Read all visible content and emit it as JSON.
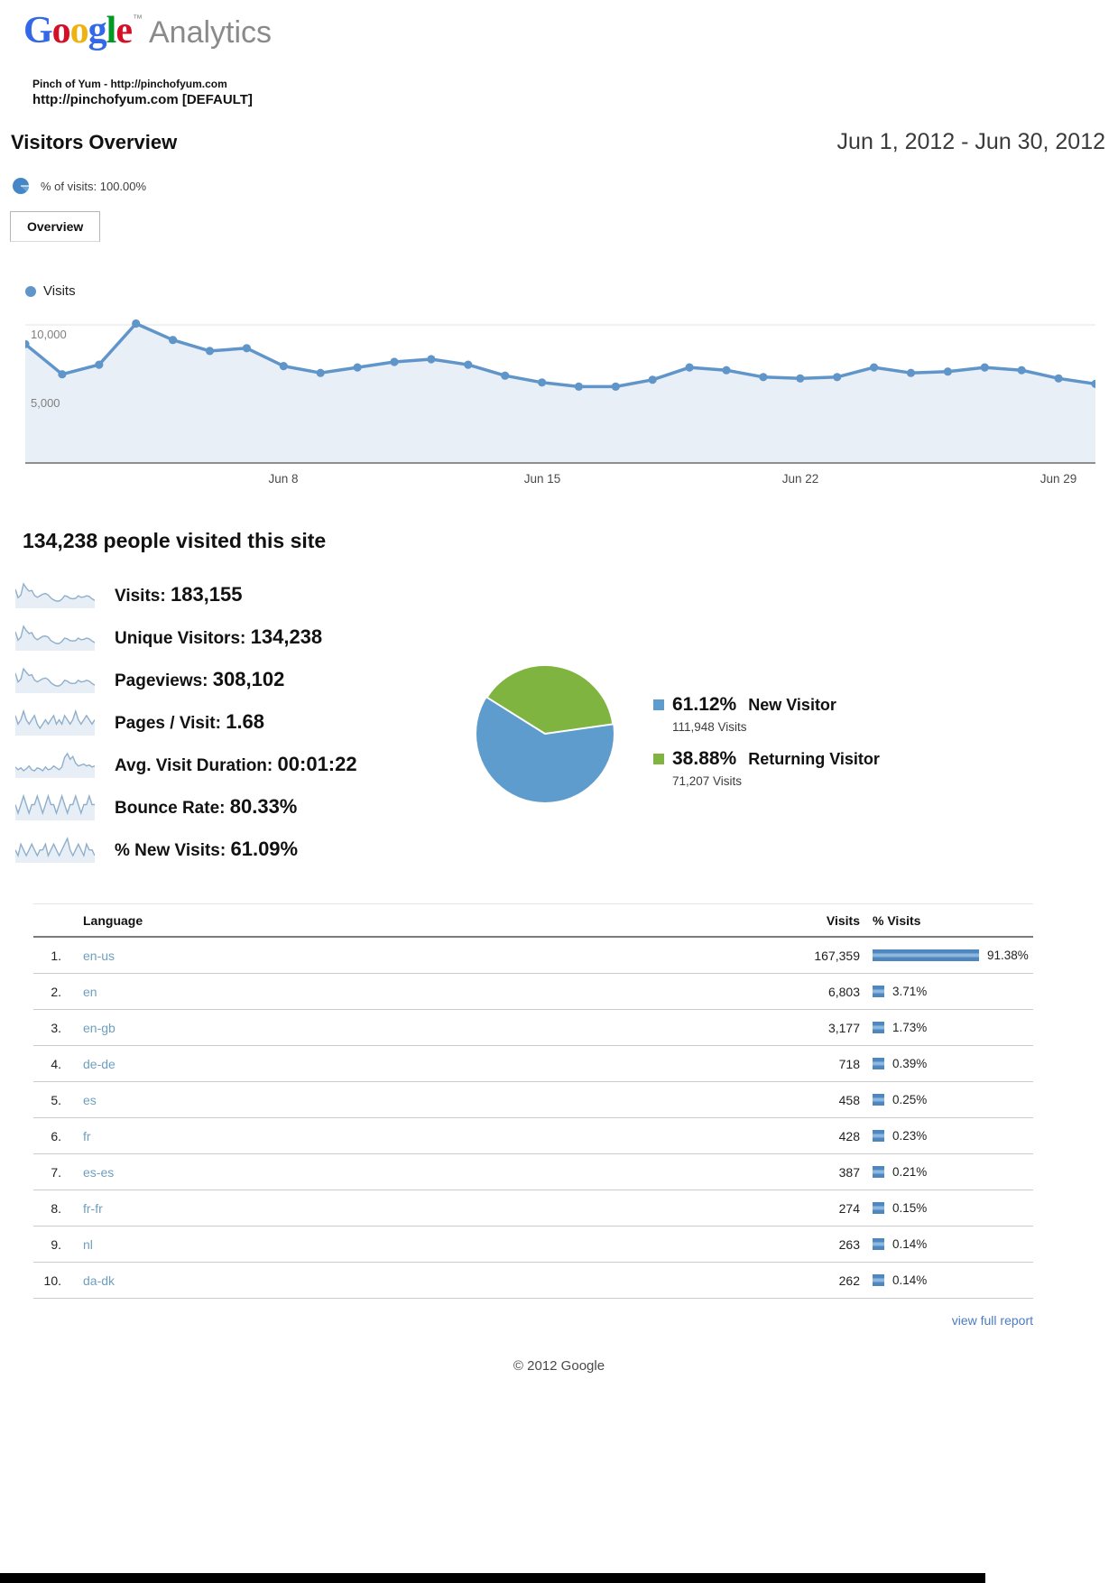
{
  "header": {
    "logo": {
      "letters": [
        {
          "ch": "G",
          "color": "#3369E8"
        },
        {
          "ch": "o",
          "color": "#D50F25"
        },
        {
          "ch": "o",
          "color": "#EEB211"
        },
        {
          "ch": "g",
          "color": "#3369E8"
        },
        {
          "ch": "l",
          "color": "#009925"
        },
        {
          "ch": "e",
          "color": "#D50F25"
        }
      ],
      "tm": "™",
      "suffix": "Analytics"
    },
    "site_line1": "Pinch of Yum - http://pinchofyum.com",
    "site_line2": "http://pinchofyum.com [DEFAULT]"
  },
  "report": {
    "title": "Visitors Overview",
    "date_range": "Jun 1, 2012 - Jun 30, 2012",
    "visits_note": "% of visits: 100.00%",
    "tab_label": "Overview"
  },
  "chart_data": [
    {
      "type": "line",
      "name": "visits-over-time",
      "legend": "Visits",
      "x_unit": "day of June 2012",
      "num_points": 30,
      "values": [
        8600,
        6400,
        7100,
        10100,
        8900,
        8100,
        8300,
        7000,
        6500,
        6900,
        7300,
        7500,
        7100,
        6300,
        5800,
        5500,
        5500,
        6000,
        6900,
        6700,
        6200,
        6100,
        6200,
        6900,
        6500,
        6600,
        6900,
        6700,
        6100,
        5700
      ],
      "yticks": [
        "5,000",
        "10,000"
      ],
      "ytick_values": [
        5000,
        10000
      ],
      "ylim": [
        0,
        11250
      ],
      "xticks": [
        {
          "day": 8,
          "label": "Jun 8"
        },
        {
          "day": 15,
          "label": "Jun 15"
        },
        {
          "day": 22,
          "label": "Jun 22"
        },
        {
          "day": 29,
          "label": "Jun 29"
        }
      ],
      "grid": true,
      "line_color": "#6095c9",
      "fill_color": "#e9eff7"
    },
    {
      "type": "pie",
      "name": "visitor-type",
      "start_angle_deg": 8,
      "slices": [
        {
          "label": "New Visitor",
          "pct": 61.12,
          "pct_label": "61.12%",
          "visits_label": "111,948 Visits",
          "color": "#5d9ccd"
        },
        {
          "label": "Returning Visitor",
          "pct": 38.88,
          "pct_label": "38.88%",
          "visits_label": "71,207 Visits",
          "color": "#7eb43f"
        }
      ]
    }
  ],
  "summary": {
    "headline": "134,238 people visited this site"
  },
  "metrics": [
    {
      "label": "Visits:",
      "value": "183,155",
      "spark": [
        86,
        64,
        71,
        100,
        89,
        81,
        83,
        70,
        65,
        69,
        73,
        75,
        71,
        63,
        58,
        55,
        55,
        60,
        69,
        67,
        62,
        61,
        62,
        69,
        65,
        66,
        69,
        67,
        61,
        57
      ]
    },
    {
      "label": "Unique Visitors:",
      "value": "134,238",
      "spark": [
        82,
        62,
        69,
        95,
        85,
        78,
        80,
        68,
        63,
        67,
        71,
        72,
        69,
        61,
        57,
        54,
        54,
        59,
        67,
        65,
        61,
        60,
        61,
        67,
        63,
        64,
        67,
        65,
        60,
        56
      ]
    },
    {
      "label": "Pageviews:",
      "value": "308,102",
      "spark": [
        88,
        66,
        73,
        99,
        90,
        82,
        84,
        71,
        66,
        70,
        74,
        76,
        72,
        64,
        59,
        56,
        56,
        61,
        70,
        68,
        63,
        62,
        63,
        70,
        66,
        67,
        70,
        68,
        62,
        58
      ]
    },
    {
      "label": "Pages / Visit:",
      "value": "1.68",
      "spark": [
        52,
        50,
        51,
        53,
        51,
        50,
        51,
        52,
        50,
        49,
        50,
        51,
        50,
        51,
        52,
        50,
        51,
        50,
        52,
        51,
        50,
        51,
        53,
        51,
        50,
        51,
        52,
        51,
        50,
        51
      ]
    },
    {
      "label": "Avg. Visit Duration:",
      "value": "00:01:22",
      "spark": [
        48,
        45,
        47,
        44,
        46,
        49,
        45,
        44,
        47,
        46,
        44,
        48,
        45,
        46,
        49,
        47,
        45,
        48,
        58,
        62,
        56,
        59,
        52,
        49,
        50,
        51,
        49,
        50,
        48,
        49
      ]
    },
    {
      "label": "Bounce Rate:",
      "value": "80.33%",
      "spark": [
        60,
        59,
        60,
        61,
        60,
        59,
        60,
        60,
        61,
        60,
        59,
        60,
        61,
        60,
        60,
        59,
        60,
        61,
        60,
        59,
        60,
        60,
        61,
        60,
        59,
        60,
        60,
        61,
        60,
        60
      ]
    },
    {
      "label": "% New Visits:",
      "value": "61.09%",
      "spark": [
        55,
        54,
        56,
        55,
        54,
        55,
        56,
        55,
        54,
        55,
        55,
        56,
        54,
        55,
        56,
        55,
        54,
        55,
        56,
        57,
        55,
        54,
        55,
        56,
        55,
        54,
        56,
        55,
        55,
        54
      ]
    }
  ],
  "language_table": {
    "headers": [
      "Language",
      "Visits",
      "% Visits"
    ],
    "max_pct": 91.38,
    "rows": [
      {
        "rank": "1.",
        "language": "en-us",
        "visits": "167,359",
        "pct": "91.38%",
        "pct_val": 91.38
      },
      {
        "rank": "2.",
        "language": "en",
        "visits": "6,803",
        "pct": "3.71%",
        "pct_val": 3.71
      },
      {
        "rank": "3.",
        "language": "en-gb",
        "visits": "3,177",
        "pct": "1.73%",
        "pct_val": 1.73
      },
      {
        "rank": "4.",
        "language": "de-de",
        "visits": "718",
        "pct": "0.39%",
        "pct_val": 0.39
      },
      {
        "rank": "5.",
        "language": "es",
        "visits": "458",
        "pct": "0.25%",
        "pct_val": 0.25
      },
      {
        "rank": "6.",
        "language": "fr",
        "visits": "428",
        "pct": "0.23%",
        "pct_val": 0.23
      },
      {
        "rank": "7.",
        "language": "es-es",
        "visits": "387",
        "pct": "0.21%",
        "pct_val": 0.21
      },
      {
        "rank": "8.",
        "language": "fr-fr",
        "visits": "274",
        "pct": "0.15%",
        "pct_val": 0.15
      },
      {
        "rank": "9.",
        "language": "nl",
        "visits": "263",
        "pct": "0.14%",
        "pct_val": 0.14
      },
      {
        "rank": "10.",
        "language": "da-dk",
        "visits": "262",
        "pct": "0.14%",
        "pct_val": 0.14
      }
    ]
  },
  "footer": {
    "view_full_report": "view full report",
    "copyright": "© 2012 Google"
  }
}
